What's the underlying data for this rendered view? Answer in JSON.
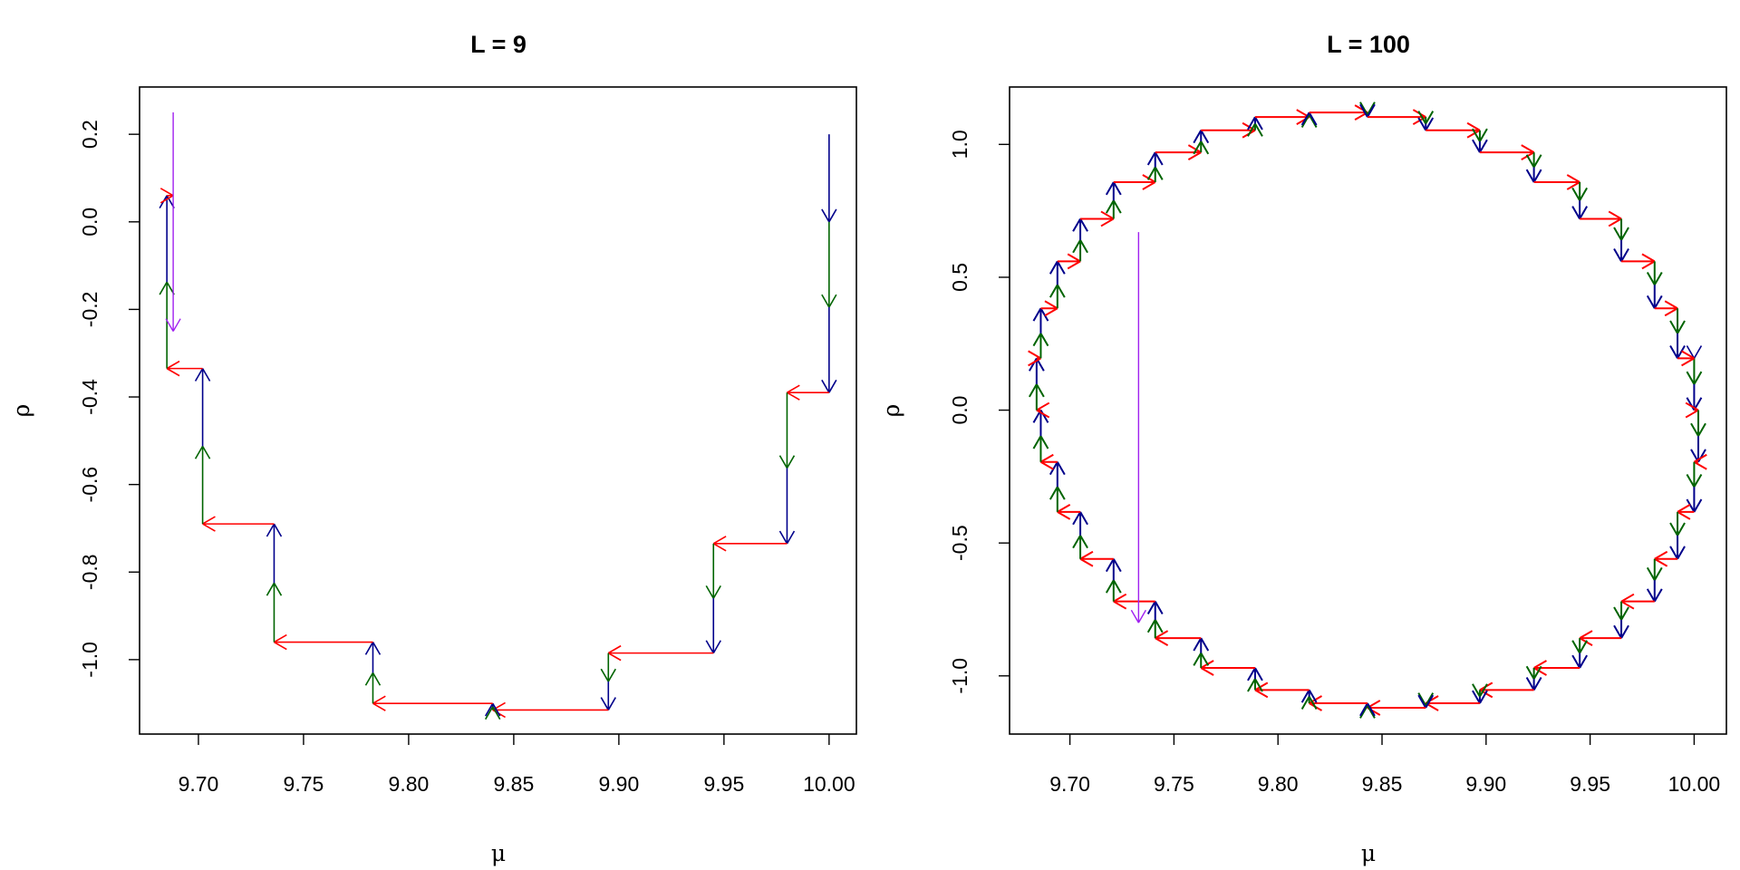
{
  "colors": {
    "mu_step": "#ff0000",
    "rho_first_half": "#006400",
    "rho_second_half": "#00008b",
    "flip": "#a020f0",
    "axis": "#000000"
  },
  "chart_data": [
    {
      "type": "line",
      "title": "L = 9",
      "xlabel": "μ",
      "ylabel": "ρ",
      "xlim": [
        9.672,
        10.013
      ],
      "ylim": [
        -1.17,
        0.308
      ],
      "xticks": [
        9.7,
        9.75,
        9.8,
        9.85,
        9.9,
        9.95,
        10.0
      ],
      "xtick_labels": [
        "9.70",
        "9.75",
        "9.80",
        "9.85",
        "9.90",
        "9.95",
        "10.00"
      ],
      "yticks": [
        0.2,
        0.0,
        -0.2,
        -0.4,
        -0.6,
        -0.8,
        -1.0
      ],
      "ytick_labels": [
        "0.2",
        "0.0",
        "-0.2",
        "-0.4",
        "-0.6",
        "-0.8",
        "-1.0"
      ],
      "initial_step": [
        [
          10.0,
          0.2
        ],
        [
          10.0,
          0.0
        ]
      ],
      "path": [
        [
          10.0,
          0.0
        ],
        [
          10.0,
          -0.39
        ],
        [
          9.98,
          -0.39
        ],
        [
          9.98,
          -0.735
        ],
        [
          9.945,
          -0.735
        ],
        [
          9.945,
          -0.985
        ],
        [
          9.895,
          -0.985
        ],
        [
          9.895,
          -1.115
        ],
        [
          9.84,
          -1.115
        ],
        [
          9.84,
          -1.1
        ],
        [
          9.783,
          -1.1
        ],
        [
          9.783,
          -0.96
        ],
        [
          9.736,
          -0.96
        ],
        [
          9.736,
          -0.69
        ],
        [
          9.702,
          -0.69
        ],
        [
          9.702,
          -0.335
        ],
        [
          9.685,
          -0.335
        ],
        [
          9.685,
          0.06
        ],
        [
          9.688,
          0.06
        ]
      ],
      "momentum_flip": [
        [
          9.688,
          0.25
        ],
        [
          9.688,
          -0.25
        ]
      ]
    },
    {
      "type": "line",
      "title": "L = 100",
      "xlabel": "μ",
      "ylabel": "ρ",
      "xlim": [
        9.671,
        10.0155
      ],
      "ylim": [
        -1.219,
        1.216
      ],
      "xticks": [
        9.7,
        9.75,
        9.8,
        9.85,
        9.9,
        9.95,
        10.0
      ],
      "xtick_labels": [
        "9.70",
        "9.75",
        "9.80",
        "9.85",
        "9.90",
        "9.95",
        "10.00"
      ],
      "yticks": [
        1.0,
        0.5,
        0.0,
        -0.5,
        -1.0
      ],
      "ytick_labels": [
        "1.0",
        "0.5",
        "0.0",
        "-0.5",
        "-1.0"
      ],
      "initial_step": [
        [
          10.0,
          0.2
        ],
        [
          10.0,
          0.195
        ]
      ],
      "path": [
        [
          10.0,
          0.195
        ],
        [
          10.002,
          0
        ],
        [
          10.0,
          -0.195
        ],
        [
          9.992,
          -0.383
        ],
        [
          9.981,
          -0.56
        ],
        [
          9.965,
          -0.72
        ],
        [
          9.945,
          -0.858
        ],
        [
          9.923,
          -0.97
        ],
        [
          9.897,
          -1.053
        ],
        [
          9.871,
          -1.103
        ],
        [
          9.843,
          -1.12
        ],
        [
          9.815,
          -1.103
        ],
        [
          9.789,
          -1.053
        ],
        [
          9.763,
          -0.97
        ],
        [
          9.741,
          -0.858
        ],
        [
          9.721,
          -0.72
        ],
        [
          9.705,
          -0.56
        ],
        [
          9.694,
          -0.383
        ],
        [
          9.686,
          -0.195
        ],
        [
          9.684,
          0
        ],
        [
          9.686,
          0.195
        ],
        [
          9.694,
          0.383
        ],
        [
          9.705,
          0.56
        ],
        [
          9.721,
          0.72
        ],
        [
          9.741,
          0.858
        ],
        [
          9.763,
          0.97
        ],
        [
          9.789,
          1.053
        ],
        [
          9.815,
          1.103
        ],
        [
          9.843,
          1.12
        ],
        [
          9.871,
          1.103
        ],
        [
          9.897,
          1.053
        ],
        [
          9.923,
          0.97
        ],
        [
          9.945,
          0.858
        ],
        [
          9.965,
          0.72
        ],
        [
          9.981,
          0.56
        ],
        [
          9.992,
          0.383
        ],
        [
          10.0,
          0.195
        ]
      ],
      "momentum_flip": [
        [
          9.733,
          0.67
        ],
        [
          9.733,
          -0.8
        ]
      ]
    }
  ]
}
